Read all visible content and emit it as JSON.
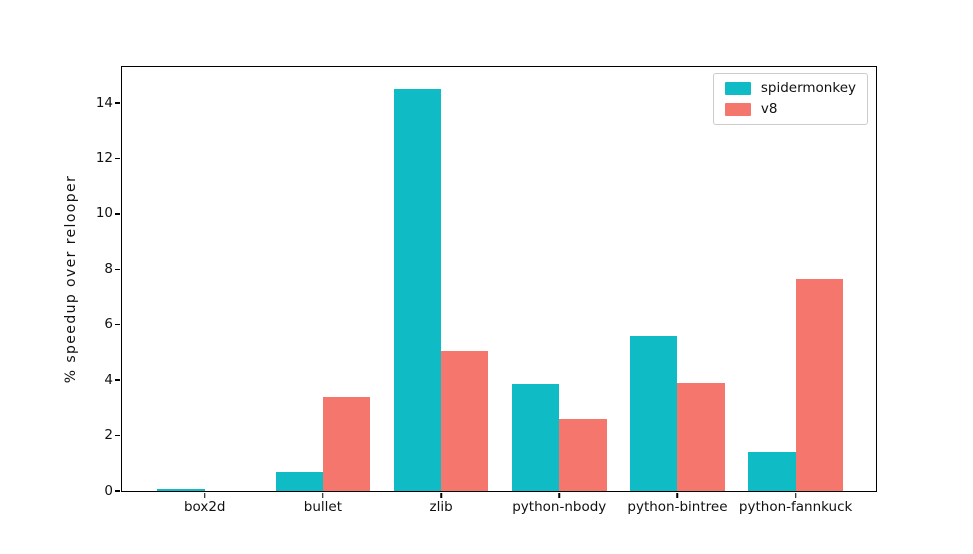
{
  "figure": {
    "background": "#ffffff"
  },
  "colors": {
    "axis": "#000000",
    "text": "#111111",
    "legend_border": "#cccccc",
    "spidermonkey": "#0fbcc5",
    "v8": "#f5766d"
  },
  "chart_data": {
    "type": "bar",
    "title": "",
    "xlabel": "",
    "ylabel": "% speedup over relooper",
    "categories": [
      "box2d",
      "bullet",
      "zlib",
      "python-nbody",
      "python-bintree",
      "python-fannkuck"
    ],
    "series": [
      {
        "name": "spidermonkey",
        "color": "#0fbcc5",
        "values": [
          0.08,
          0.7,
          14.5,
          3.85,
          5.6,
          1.4
        ]
      },
      {
        "name": "v8",
        "color": "#f5766d",
        "values": [
          0.0,
          3.4,
          5.05,
          2.6,
          3.9,
          7.65
        ]
      }
    ],
    "ylim": [
      0,
      15.3
    ],
    "yticks": [
      0,
      2,
      4,
      6,
      8,
      10,
      12,
      14
    ],
    "xlim": [
      -0.7,
      5.68
    ],
    "bar_width": 0.4,
    "grid": false,
    "legend_position": "upper right"
  }
}
